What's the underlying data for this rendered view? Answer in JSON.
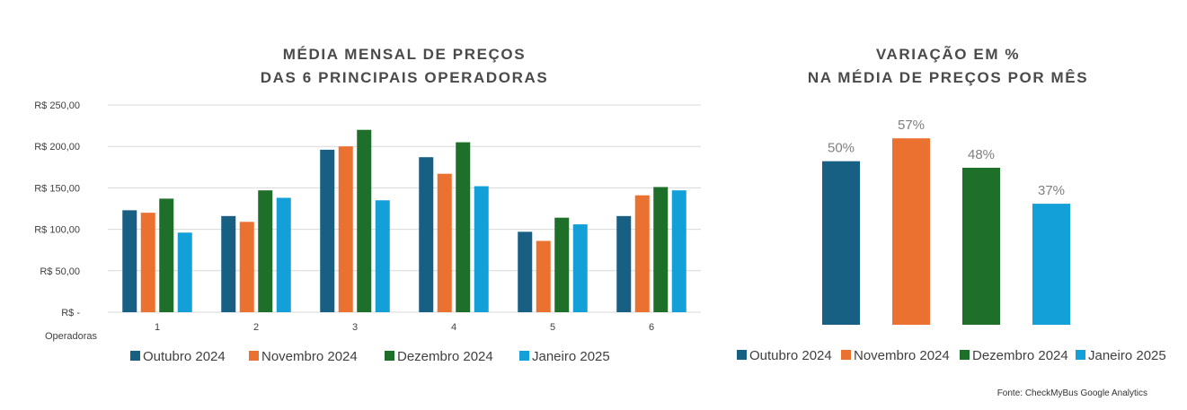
{
  "colors": {
    "Outubro 2024": "#175f83",
    "Novembro 2024": "#ea7130",
    "Dezembro 2024": "#1d6f2a",
    "Janeiro 2025": "#13a0d8",
    "gridline": "#d9d9d9",
    "text": "#404040",
    "label": "#7f7f7f"
  },
  "chart_data": [
    {
      "type": "bar",
      "title_line1": "MÉDIA MENSAL DE PREÇOS",
      "title_line2": "DAS 6 PRINCIPAIS OPERADORAS",
      "xlabel": "Operadoras",
      "categories": [
        "1",
        "2",
        "3",
        "4",
        "5",
        "6"
      ],
      "yticks": [
        0,
        50,
        100,
        150,
        200,
        250
      ],
      "ytick_labels": [
        "R$ -",
        "R$ 50,00",
        "R$ 100,00",
        "R$ 150,00",
        "R$ 200,00",
        "R$ 250,00"
      ],
      "ylim": [
        0,
        250
      ],
      "grid": true,
      "legend_position": "bottom",
      "series": [
        {
          "name": "Outubro 2024",
          "values": [
            123,
            116,
            196,
            187,
            97,
            116
          ]
        },
        {
          "name": "Novembro 2024",
          "values": [
            120,
            109,
            200,
            167,
            86,
            141
          ]
        },
        {
          "name": "Dezembro 2024",
          "values": [
            137,
            147,
            220,
            205,
            114,
            151
          ]
        },
        {
          "name": "Janeiro 2025",
          "values": [
            96,
            138,
            135,
            152,
            106,
            147
          ]
        }
      ]
    },
    {
      "type": "bar",
      "title_line1": "VARIAÇÃO EM %",
      "title_line2": "NA MÉDIA DE PREÇOS POR MÊS",
      "categories": [
        "Outubro 2024",
        "Novembro 2024",
        "Dezembro 2024",
        "Janeiro 2025"
      ],
      "values": [
        50,
        57,
        48,
        37
      ],
      "value_labels": [
        "50%",
        "57%",
        "48%",
        "37%"
      ],
      "ylim": [
        0,
        65
      ],
      "grid": false,
      "legend_position": "bottom"
    }
  ],
  "source": "Fonte: CheckMyBus Google Analytics"
}
